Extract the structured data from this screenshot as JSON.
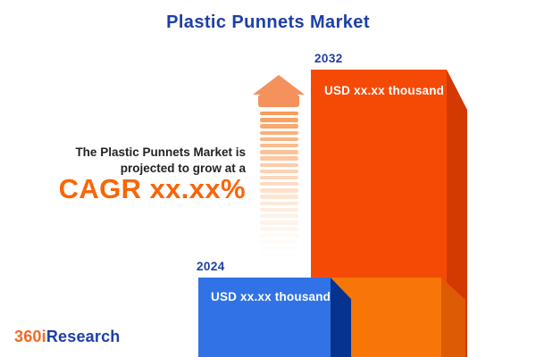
{
  "page": {
    "title": "Plastic Punnets Market"
  },
  "annotation": {
    "line1": "The Plastic Punnets Market is",
    "line2": "projected to grow at a",
    "cagr": "CAGR xx.xx%"
  },
  "chart_data": {
    "type": "bar",
    "title": "Plastic Punnets Market",
    "categories": [
      "2024",
      "2032"
    ],
    "values": [
      "USD xx.xx thousand",
      "USD xx.xx thousand"
    ],
    "annotation": "The Plastic Punnets Market is projected to grow at a CAGR xx.xx%",
    "grid": false,
    "legend_position": "none"
  },
  "bars": {
    "b2024": {
      "year": "2024",
      "value": "USD xx.xx thousand"
    },
    "b2032": {
      "year": "2032",
      "value": "USD xx.xx thousand"
    }
  },
  "logo": {
    "prefix": "360i",
    "suffix": "Research"
  },
  "icons": {
    "growth_arrow": "up-arrow-icon"
  },
  "arrow": {
    "stripe_count": 23
  },
  "colors": {
    "title_blue": "#1d3fa6",
    "text_dark": "#222222",
    "cagr_orange": "#fa6507",
    "bar2032_face": "#f54a06",
    "bar2032_side": "#d23a02",
    "bar2032_base_face": "#f87507",
    "bar2032_base_side": "#dd5b04",
    "bar2024_face": "#3173e6",
    "bar2024_side": "#05338f",
    "arrow_orange": "#f4915c",
    "stripe_orange": "#f99b58",
    "logo_orange": "#f26a21",
    "logo_blue": "#1d3fa6"
  }
}
